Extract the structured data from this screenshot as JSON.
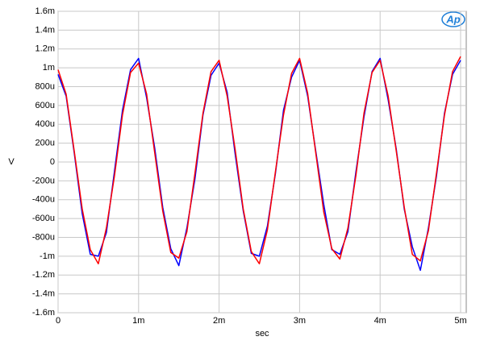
{
  "chart_data": {
    "type": "line",
    "logo": "Ap",
    "xlabel": "sec",
    "ylabel": "V",
    "xlim": [
      0,
      0.00507
    ],
    "ylim": [
      -0.0016,
      0.0016
    ],
    "xticks": [
      0,
      {
        "value": 0.001,
        "label": "1m"
      },
      {
        "value": 0.002,
        "label": "2m"
      },
      {
        "value": 0.003,
        "label": "3m"
      },
      {
        "value": 0.004,
        "label": "4m"
      },
      {
        "value": 0.005,
        "label": "5m"
      }
    ],
    "yticks": [
      {
        "value": 0.0016,
        "label": "1.6m"
      },
      {
        "value": 0.0014,
        "label": "1.4m"
      },
      {
        "value": 0.0012,
        "label": "1.2m"
      },
      {
        "value": 0.001,
        "label": "1m"
      },
      {
        "value": 0.0008,
        "label": "800u"
      },
      {
        "value": 0.0006,
        "label": "600u"
      },
      {
        "value": 0.0004,
        "label": "400u"
      },
      {
        "value": 0.0002,
        "label": "200u"
      },
      0,
      {
        "value": -0.0002,
        "label": "-200u"
      },
      {
        "value": -0.0004,
        "label": "-400u"
      },
      {
        "value": -0.0006,
        "label": "-600u"
      },
      {
        "value": -0.0008,
        "label": "-800u"
      },
      {
        "value": -0.001,
        "label": "-1m"
      },
      {
        "value": -0.0012,
        "label": "-1.2m"
      },
      {
        "value": -0.0014,
        "label": "-1.4m"
      },
      {
        "value": -0.0016,
        "label": "-1.6m"
      }
    ],
    "grid": true,
    "x": [
      0,
      0.0001,
      0.0002,
      0.0003,
      0.0004,
      0.0005,
      0.0006,
      0.0007,
      0.0008,
      0.0009,
      0.001,
      0.0011,
      0.0012,
      0.0013,
      0.0014,
      0.0015,
      0.0016,
      0.0017,
      0.0018,
      0.0019,
      0.002,
      0.0021,
      0.0022,
      0.0023,
      0.0024,
      0.0025,
      0.0026,
      0.0027,
      0.0028,
      0.0029,
      0.003,
      0.0031,
      0.0032,
      0.0033,
      0.0034,
      0.0035,
      0.0036,
      0.0037,
      0.0038,
      0.0039,
      0.004,
      0.0041,
      0.0042,
      0.0043,
      0.0044,
      0.0045,
      0.0046,
      0.0047,
      0.0048,
      0.0049,
      0.005
    ],
    "series": [
      {
        "color": "#0000ff",
        "values": [
          0.00093,
          0.0007,
          0.0001,
          -0.00055,
          -0.00098,
          -0.001,
          -0.00075,
          -0.0001,
          0.00055,
          0.00098,
          0.0011,
          0.00068,
          0.00015,
          -0.00048,
          -0.00092,
          -0.0011,
          -0.0007,
          -0.00018,
          0.0005,
          0.00092,
          0.00105,
          0.00074,
          8e-05,
          -0.00052,
          -0.00097,
          -0.001,
          -0.00068,
          -0.00012,
          0.00055,
          0.0009,
          0.00108,
          0.0007,
          0.00012,
          -0.00045,
          -0.00093,
          -0.00098,
          -0.00074,
          -0.0001,
          0.00048,
          0.00096,
          0.0011,
          0.00066,
          0.00014,
          -0.0005,
          -0.0009,
          -0.00115,
          -0.0007,
          -0.00015,
          0.00052,
          0.00093,
          0.00108
        ]
      },
      {
        "color": "#ff0000",
        "values": [
          0.00098,
          0.00072,
          0.00012,
          -0.0005,
          -0.00093,
          -0.00108,
          -0.0007,
          -0.00015,
          0.0005,
          0.00095,
          0.00105,
          0.00072,
          0.0001,
          -0.00052,
          -0.00096,
          -0.00102,
          -0.00074,
          -0.00012,
          0.00052,
          0.00096,
          0.00108,
          0.0007,
          0.00013,
          -0.0005,
          -0.00095,
          -0.00108,
          -0.00072,
          -0.0001,
          0.0005,
          0.00094,
          0.0011,
          0.00073,
          0.0001,
          -0.00053,
          -0.00092,
          -0.00103,
          -0.0007,
          -0.00014,
          0.00052,
          0.00095,
          0.00108,
          0.0007,
          0.00012,
          -0.00048,
          -0.00098,
          -0.00105,
          -0.00073,
          -0.00012,
          0.0005,
          0.00096,
          0.00112
        ]
      }
    ]
  }
}
